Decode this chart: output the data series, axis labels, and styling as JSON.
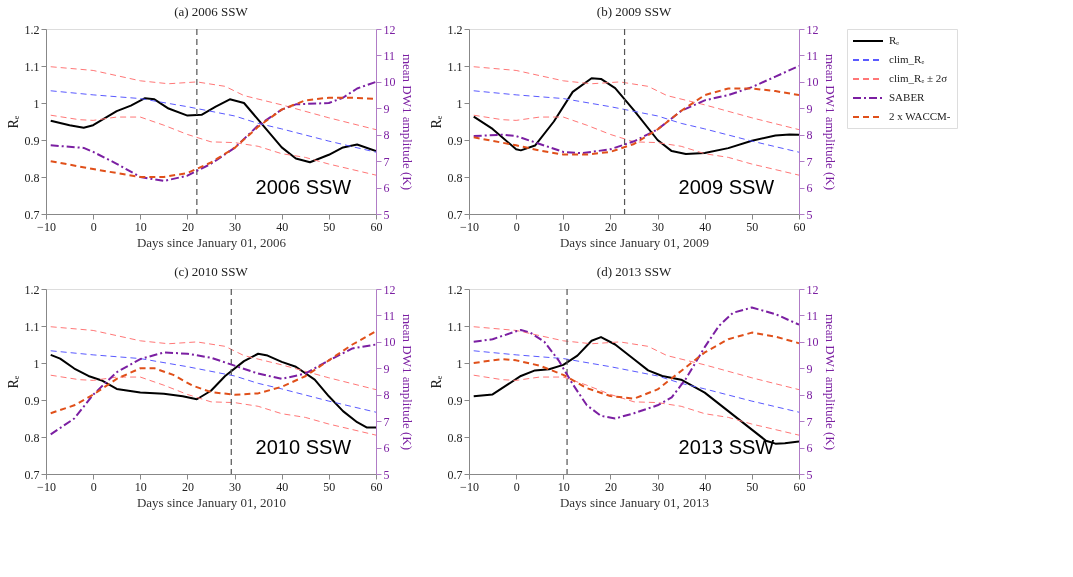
{
  "chart_data": [
    {
      "type": "line",
      "title": "(a) 2006 SSW",
      "xlabel": "Days since January 01, 2006",
      "ylabel": "Rₑ",
      "y2label": "mean DW1 amplitude (K)",
      "xlim": [
        -10,
        60
      ],
      "xticks": [
        -10,
        0,
        10,
        20,
        30,
        40,
        50,
        60
      ],
      "ylim": [
        0.7,
        1.2
      ],
      "yticks": [
        0.7,
        0.8,
        0.9,
        1,
        1.1,
        1.2
      ],
      "y2lim": [
        5,
        12
      ],
      "y2ticks": [
        5,
        6,
        7,
        8,
        9,
        10,
        11,
        12
      ],
      "grid": false,
      "legend": false,
      "ref_lines": [
        {
          "axis": "x",
          "value": 22,
          "color": "#555555",
          "line_style": "dashed"
        }
      ],
      "annotations": [
        "2006 SSW"
      ],
      "series": [
        {
          "color": "#000000",
          "line_style": "solid",
          "x": [
            -9,
            -5,
            -2,
            0,
            5,
            8,
            11,
            13,
            16,
            20,
            23,
            26,
            29,
            32,
            35,
            40,
            43,
            46,
            50,
            53,
            56,
            60
          ],
          "values": [
            0.952,
            0.94,
            0.933,
            0.94,
            0.978,
            0.993,
            1.013,
            1.01,
            0.985,
            0.966,
            0.968,
            0.99,
            1.01,
            1.0,
            0.955,
            0.88,
            0.85,
            0.84,
            0.86,
            0.88,
            0.888,
            0.87
          ]
        },
        {
          "color": "#5a5aff",
          "line_style": "dashed",
          "x": [
            -9,
            0,
            10,
            20,
            30,
            35,
            40,
            50,
            60
          ],
          "values": [
            1.033,
            1.022,
            1.012,
            0.99,
            0.965,
            0.945,
            0.93,
            0.897,
            0.867
          ]
        },
        {
          "color": "#ff7777",
          "line_style": "dashed",
          "x": [
            -9,
            0,
            10,
            16,
            22,
            28,
            32,
            40,
            50,
            60
          ],
          "values": [
            1.098,
            1.088,
            1.06,
            1.052,
            1.057,
            1.045,
            1.02,
            0.995,
            0.96,
            0.928
          ]
        },
        {
          "color": "#ff7777",
          "line_style": "dashed",
          "x": [
            -9,
            -3,
            0,
            5,
            10,
            15,
            20,
            25,
            30,
            35,
            40,
            45,
            50,
            55,
            60
          ],
          "values": [
            0.967,
            0.955,
            0.953,
            0.962,
            0.962,
            0.94,
            0.915,
            0.895,
            0.893,
            0.883,
            0.863,
            0.853,
            0.835,
            0.82,
            0.805
          ]
        },
        {
          "color": "#7b1fa2",
          "line_style": "dashdot",
          "axis": "y2",
          "x": [
            -9,
            -2,
            0,
            5,
            10,
            15,
            20,
            25,
            30,
            35,
            40,
            43,
            50,
            53,
            56,
            60
          ],
          "values": [
            7.6,
            7.5,
            7.35,
            6.9,
            6.4,
            6.25,
            6.45,
            6.9,
            7.5,
            8.35,
            8.95,
            9.15,
            9.2,
            9.4,
            9.75,
            10.0
          ]
        },
        {
          "color": "#e0501a",
          "line_style": "dashed",
          "axis": "y2",
          "x": [
            -9,
            0,
            5,
            10,
            15,
            20,
            25,
            30,
            35,
            40,
            45,
            50,
            55,
            60
          ],
          "values": [
            7.0,
            6.7,
            6.55,
            6.4,
            6.4,
            6.55,
            6.95,
            7.5,
            8.3,
            8.95,
            9.3,
            9.4,
            9.4,
            9.35
          ]
        }
      ]
    },
    {
      "type": "line",
      "title": "(b) 2009 SSW",
      "xlabel": "Days since January 01, 2009",
      "ylabel": "Rₑ",
      "y2label": "mean DW1 amplitude (K)",
      "xlim": [
        -10,
        60
      ],
      "xticks": [
        -10,
        0,
        10,
        20,
        30,
        40,
        50,
        60
      ],
      "ylim": [
        0.7,
        1.2
      ],
      "yticks": [
        0.7,
        0.8,
        0.9,
        1,
        1.1,
        1.2
      ],
      "y2lim": [
        5,
        12
      ],
      "y2ticks": [
        5,
        6,
        7,
        8,
        9,
        10,
        11,
        12
      ],
      "grid": false,
      "legend": "right",
      "ref_lines": [
        {
          "axis": "x",
          "value": 23,
          "color": "#555555",
          "line_style": "dashed"
        }
      ],
      "annotations": [
        "2009 SSW"
      ],
      "series": [
        {
          "name": "Rₑ",
          "color": "#000000",
          "line_style": "solid",
          "x": [
            -9,
            -5,
            0,
            1,
            4,
            8,
            12,
            16,
            18,
            21,
            25,
            30,
            33,
            36,
            40,
            45,
            50,
            55,
            58,
            60
          ],
          "values": [
            0.963,
            0.93,
            0.875,
            0.872,
            0.885,
            0.95,
            1.03,
            1.067,
            1.065,
            1.04,
            0.98,
            0.9,
            0.87,
            0.862,
            0.865,
            0.878,
            0.898,
            0.912,
            0.915,
            0.914
          ]
        },
        {
          "name": "clim_Rₑ",
          "color": "#5a5aff",
          "line_style": "dashed",
          "x": [
            -9,
            0,
            10,
            20,
            30,
            35,
            40,
            50,
            60
          ],
          "values": [
            1.033,
            1.022,
            1.012,
            0.99,
            0.965,
            0.945,
            0.93,
            0.897,
            0.867
          ]
        },
        {
          "name": "clim_Rₑ ± 2σ",
          "color": "#ff7777",
          "line_style": "dashed",
          "x": [
            -9,
            0,
            10,
            16,
            22,
            28,
            32,
            40,
            50,
            60
          ],
          "values": [
            1.098,
            1.088,
            1.06,
            1.052,
            1.057,
            1.045,
            1.02,
            0.995,
            0.96,
            0.928
          ]
        },
        {
          "color": "#ff7777",
          "line_style": "dashed",
          "x": [
            -9,
            -3,
            0,
            5,
            10,
            15,
            20,
            25,
            30,
            35,
            40,
            45,
            50,
            55,
            60
          ],
          "values": [
            0.967,
            0.955,
            0.953,
            0.962,
            0.962,
            0.94,
            0.915,
            0.895,
            0.893,
            0.883,
            0.863,
            0.853,
            0.835,
            0.82,
            0.805
          ]
        },
        {
          "name": "SABER",
          "color": "#7b1fa2",
          "line_style": "dashdot",
          "axis": "y2",
          "x": [
            -9,
            -3,
            0,
            5,
            10,
            14,
            20,
            25,
            30,
            35,
            40,
            45,
            50,
            55,
            60
          ],
          "values": [
            7.95,
            8.0,
            7.95,
            7.65,
            7.35,
            7.3,
            7.45,
            7.75,
            8.2,
            8.9,
            9.3,
            9.5,
            9.8,
            10.2,
            10.6
          ]
        },
        {
          "name": "2 x WACCM-",
          "color": "#e0501a",
          "line_style": "dashed",
          "axis": "y2",
          "x": [
            -9,
            0,
            5,
            10,
            15,
            20,
            25,
            30,
            35,
            40,
            45,
            50,
            55,
            60
          ],
          "values": [
            7.9,
            7.6,
            7.4,
            7.25,
            7.25,
            7.35,
            7.65,
            8.2,
            8.9,
            9.5,
            9.75,
            9.75,
            9.65,
            9.5
          ]
        }
      ]
    },
    {
      "type": "line",
      "title": "(c) 2010 SSW",
      "xlabel": "Days since January 01, 2010",
      "ylabel": "Rₑ",
      "y2label": "mean DW1 amplitude (K)",
      "xlim": [
        -10,
        60
      ],
      "xticks": [
        -10,
        0,
        10,
        20,
        30,
        40,
        50,
        60
      ],
      "ylim": [
        0.7,
        1.2
      ],
      "yticks": [
        0.7,
        0.8,
        0.9,
        1,
        1.1,
        1.2
      ],
      "y2lim": [
        5,
        12
      ],
      "y2ticks": [
        5,
        6,
        7,
        8,
        9,
        10,
        11,
        12
      ],
      "grid": false,
      "legend": false,
      "ref_lines": [
        {
          "axis": "x",
          "value": 29.3,
          "color": "#555555",
          "line_style": "dashed"
        }
      ],
      "annotations": [
        "2010 SSW"
      ],
      "series": [
        {
          "color": "#000000",
          "line_style": "solid",
          "x": [
            -9,
            -7,
            -4,
            -1,
            2,
            5,
            10,
            15,
            19,
            22,
            25,
            28,
            32,
            35,
            37,
            40,
            43,
            47,
            50,
            53,
            56,
            58,
            60
          ],
          "values": [
            1.022,
            1.012,
            0.985,
            0.965,
            0.952,
            0.93,
            0.92,
            0.917,
            0.91,
            0.902,
            0.925,
            0.965,
            1.005,
            1.025,
            1.02,
            1.003,
            0.99,
            0.955,
            0.91,
            0.87,
            0.84,
            0.826,
            0.826
          ]
        },
        {
          "color": "#5a5aff",
          "line_style": "dashed",
          "x": [
            -9,
            0,
            10,
            20,
            30,
            35,
            40,
            50,
            60
          ],
          "values": [
            1.033,
            1.022,
            1.012,
            0.99,
            0.965,
            0.945,
            0.93,
            0.897,
            0.867
          ]
        },
        {
          "color": "#ff7777",
          "line_style": "dashed",
          "x": [
            -9,
            0,
            10,
            16,
            22,
            28,
            32,
            40,
            50,
            60
          ],
          "values": [
            1.098,
            1.088,
            1.06,
            1.052,
            1.057,
            1.045,
            1.02,
            0.995,
            0.96,
            0.928
          ]
        },
        {
          "color": "#ff7777",
          "line_style": "dashed",
          "x": [
            -9,
            -3,
            0,
            5,
            10,
            15,
            20,
            25,
            30,
            35,
            40,
            45,
            50,
            55,
            60
          ],
          "values": [
            0.967,
            0.955,
            0.953,
            0.962,
            0.962,
            0.94,
            0.915,
            0.895,
            0.893,
            0.883,
            0.863,
            0.853,
            0.835,
            0.82,
            0.805
          ]
        },
        {
          "color": "#7b1fa2",
          "line_style": "dashdot",
          "axis": "y2",
          "x": [
            -9,
            -4,
            0,
            5,
            10,
            15,
            20,
            25,
            30,
            35,
            40,
            45,
            50,
            55,
            60
          ],
          "values": [
            6.5,
            7.1,
            8.0,
            8.85,
            9.35,
            9.6,
            9.55,
            9.4,
            9.1,
            8.8,
            8.6,
            8.8,
            9.3,
            9.75,
            9.9
          ]
        },
        {
          "color": "#e0501a",
          "line_style": "dashed",
          "axis": "y2",
          "x": [
            -9,
            -4,
            0,
            5,
            10,
            13,
            17,
            21,
            25,
            30,
            35,
            40,
            45,
            50,
            55,
            60
          ],
          "values": [
            7.3,
            7.6,
            8.0,
            8.6,
            9.0,
            9.0,
            8.75,
            8.35,
            8.1,
            8.0,
            8.05,
            8.3,
            8.7,
            9.3,
            9.9,
            10.4
          ]
        }
      ]
    },
    {
      "type": "line",
      "title": "(d) 2013 SSW",
      "xlabel": "Days since January 01, 2013",
      "ylabel": "Rₑ",
      "y2label": "mean DW1 amplitude (K)",
      "xlim": [
        -10,
        60
      ],
      "xticks": [
        -10,
        0,
        10,
        20,
        30,
        40,
        50,
        60
      ],
      "ylim": [
        0.7,
        1.2
      ],
      "yticks": [
        0.7,
        0.8,
        0.9,
        1,
        1.1,
        1.2
      ],
      "y2lim": [
        5,
        12
      ],
      "y2ticks": [
        5,
        6,
        7,
        8,
        9,
        10,
        11,
        12
      ],
      "grid": false,
      "legend": false,
      "ref_lines": [
        {
          "axis": "x",
          "value": 10.8,
          "color": "#555555",
          "line_style": "dashed"
        }
      ],
      "annotations": [
        "2013 SSW"
      ],
      "series": [
        {
          "color": "#000000",
          "line_style": "solid",
          "x": [
            -9,
            -5,
            -2,
            1,
            4,
            7,
            10,
            13,
            16,
            18,
            21,
            25,
            28,
            31,
            35,
            40,
            45,
            50,
            53,
            55,
            57,
            60
          ],
          "values": [
            0.91,
            0.915,
            0.94,
            0.965,
            0.98,
            0.983,
            0.995,
            1.02,
            1.06,
            1.07,
            1.05,
            1.01,
            0.98,
            0.965,
            0.955,
            0.92,
            0.87,
            0.82,
            0.79,
            0.782,
            0.783,
            0.788
          ]
        },
        {
          "color": "#5a5aff",
          "line_style": "dashed",
          "x": [
            -9,
            0,
            10,
            20,
            30,
            35,
            40,
            50,
            60
          ],
          "values": [
            1.033,
            1.022,
            1.012,
            0.99,
            0.965,
            0.945,
            0.93,
            0.897,
            0.867
          ]
        },
        {
          "color": "#ff7777",
          "line_style": "dashed",
          "x": [
            -9,
            0,
            10,
            16,
            22,
            28,
            32,
            40,
            50,
            60
          ],
          "values": [
            1.098,
            1.088,
            1.06,
            1.052,
            1.057,
            1.045,
            1.02,
            0.995,
            0.96,
            0.928
          ]
        },
        {
          "color": "#ff7777",
          "line_style": "dashed",
          "x": [
            -9,
            -3,
            0,
            5,
            10,
            15,
            20,
            25,
            30,
            35,
            40,
            45,
            50,
            55,
            60
          ],
          "values": [
            0.967,
            0.955,
            0.953,
            0.962,
            0.962,
            0.94,
            0.915,
            0.895,
            0.893,
            0.883,
            0.863,
            0.853,
            0.835,
            0.82,
            0.805
          ]
        },
        {
          "color": "#7b1fa2",
          "line_style": "dashdot",
          "axis": "y2",
          "x": [
            -9,
            -5,
            0,
            1,
            3,
            6,
            9,
            12,
            15,
            18,
            21,
            25,
            30,
            33,
            36,
            40,
            43,
            46,
            50,
            55,
            60
          ],
          "values": [
            10.0,
            10.1,
            10.4,
            10.45,
            10.35,
            10.0,
            9.3,
            8.4,
            7.6,
            7.2,
            7.1,
            7.3,
            7.6,
            7.9,
            8.6,
            9.8,
            10.6,
            11.1,
            11.3,
            11.05,
            10.65
          ]
        },
        {
          "color": "#e0501a",
          "line_style": "dashed",
          "axis": "y2",
          "x": [
            -9,
            -3,
            0,
            5,
            10,
            15,
            20,
            25,
            30,
            35,
            40,
            45,
            50,
            55,
            60
          ],
          "values": [
            9.2,
            9.35,
            9.3,
            9.1,
            8.75,
            8.25,
            7.95,
            7.85,
            8.2,
            8.9,
            9.6,
            10.1,
            10.35,
            10.2,
            9.95
          ]
        }
      ]
    }
  ]
}
